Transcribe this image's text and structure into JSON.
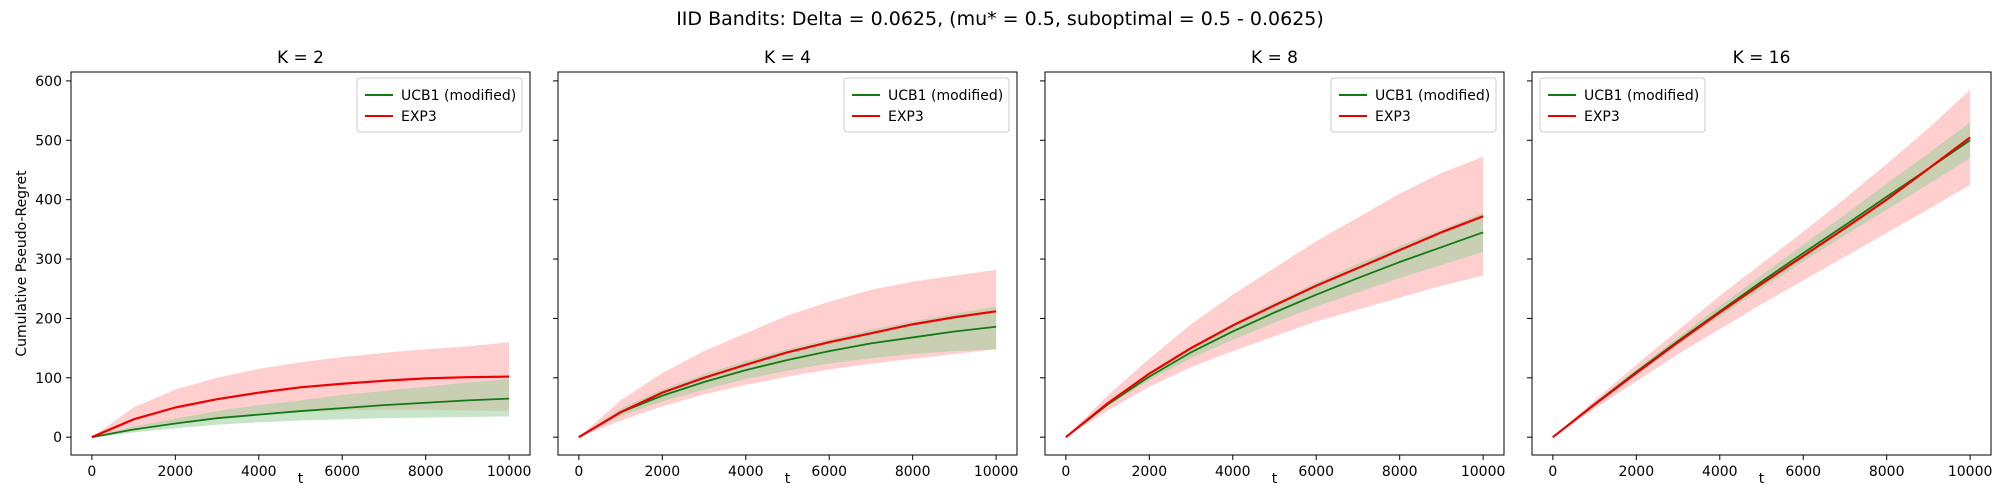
{
  "figure_title": "IID Bandits: Delta = 0.0625, (mu* = 0.5, suboptimal = 0.5 - 0.0625)",
  "colors": {
    "ucb_line": "#137a13",
    "ucb_band": "#9ccf9c",
    "exp3_line": "#ee0000",
    "exp3_band": "#ffb3b3"
  },
  "chart_data": [
    {
      "type": "line",
      "title": "K = 2",
      "xlabel": "t",
      "ylabel": "Cumulative Pseudo-Regret",
      "xlim": [
        -500,
        10500
      ],
      "ylim": [
        -30,
        615
      ],
      "xticks": [
        0,
        2000,
        4000,
        6000,
        8000,
        10000
      ],
      "yticks": [
        0,
        100,
        200,
        300,
        400,
        500,
        600
      ],
      "legend": "top-right",
      "x": [
        0,
        1000,
        2000,
        3000,
        4000,
        5000,
        6000,
        7000,
        8000,
        9000,
        10000
      ],
      "series": [
        {
          "name": "UCB1 (modified)",
          "mean": [
            0,
            13,
            23,
            32,
            38,
            44,
            49,
            54,
            58,
            62,
            65
          ],
          "upper": [
            0,
            18,
            31,
            44,
            54,
            62,
            71,
            78,
            85,
            92,
            98
          ],
          "lower": [
            0,
            8,
            15,
            21,
            25,
            28,
            30,
            32,
            33,
            34,
            35
          ]
        },
        {
          "name": "EXP3",
          "mean": [
            0,
            30,
            50,
            64,
            75,
            84,
            90,
            95,
            99,
            101,
            102
          ],
          "upper": [
            0,
            50,
            80,
            100,
            115,
            126,
            135,
            142,
            148,
            153,
            160
          ],
          "lower": [
            0,
            15,
            25,
            33,
            38,
            42,
            45,
            46,
            46,
            45,
            44
          ]
        }
      ]
    },
    {
      "type": "line",
      "title": "K = 4",
      "xlabel": "t",
      "ylabel": "",
      "xlim": [
        -500,
        10500
      ],
      "ylim": [
        -30,
        615
      ],
      "xticks": [
        0,
        2000,
        4000,
        6000,
        8000,
        10000
      ],
      "yticks": [
        0,
        100,
        200,
        300,
        400,
        500,
        600
      ],
      "legend": "top-right",
      "x": [
        0,
        1000,
        2000,
        3000,
        4000,
        5000,
        6000,
        7000,
        8000,
        9000,
        10000
      ],
      "series": [
        {
          "name": "UCB1 (modified)",
          "mean": [
            0,
            42,
            70,
            93,
            113,
            130,
            145,
            158,
            168,
            178,
            186
          ],
          "upper": [
            0,
            48,
            80,
            106,
            128,
            148,
            165,
            181,
            195,
            208,
            220
          ],
          "lower": [
            0,
            36,
            60,
            80,
            98,
            112,
            124,
            133,
            140,
            145,
            148
          ]
        },
        {
          "name": "EXP3",
          "mean": [
            0,
            42,
            75,
            100,
            122,
            143,
            160,
            175,
            190,
            202,
            212
          ],
          "upper": [
            0,
            62,
            108,
            145,
            175,
            205,
            228,
            248,
            262,
            272,
            282
          ],
          "lower": [
            0,
            28,
            52,
            72,
            88,
            102,
            114,
            124,
            132,
            140,
            148
          ]
        }
      ]
    },
    {
      "type": "line",
      "title": "K = 8",
      "xlabel": "t",
      "ylabel": "",
      "xlim": [
        -500,
        10500
      ],
      "ylim": [
        -30,
        615
      ],
      "xticks": [
        0,
        2000,
        4000,
        6000,
        8000,
        10000
      ],
      "yticks": [
        0,
        100,
        200,
        300,
        400,
        500,
        600
      ],
      "legend": "top-right",
      "x": [
        0,
        1000,
        2000,
        3000,
        4000,
        5000,
        6000,
        7000,
        8000,
        9000,
        10000
      ],
      "series": [
        {
          "name": "UCB1 (modified)",
          "mean": [
            0,
            55,
            102,
            143,
            178,
            210,
            240,
            268,
            295,
            320,
            345
          ],
          "upper": [
            0,
            58,
            108,
            153,
            192,
            227,
            260,
            292,
            322,
            350,
            378
          ],
          "lower": [
            0,
            52,
            96,
            133,
            164,
            193,
            220,
            244,
            268,
            290,
            312
          ]
        },
        {
          "name": "EXP3",
          "mean": [
            0,
            57,
            107,
            150,
            188,
            222,
            255,
            285,
            315,
            345,
            372
          ],
          "upper": [
            0,
            70,
            132,
            190,
            240,
            285,
            330,
            370,
            410,
            445,
            472
          ],
          "lower": [
            0,
            45,
            85,
            118,
            145,
            170,
            195,
            215,
            235,
            255,
            272
          ]
        }
      ]
    },
    {
      "type": "line",
      "title": "K = 16",
      "xlabel": "t",
      "ylabel": "",
      "xlim": [
        -500,
        10500
      ],
      "ylim": [
        -30,
        615
      ],
      "xticks": [
        0,
        2000,
        4000,
        6000,
        8000,
        10000
      ],
      "yticks": [
        0,
        100,
        200,
        300,
        400,
        500,
        600
      ],
      "legend": "top-left",
      "x": [
        0,
        1000,
        2000,
        3000,
        4000,
        5000,
        6000,
        7000,
        8000,
        9000,
        10000
      ],
      "series": [
        {
          "name": "UCB1 (modified)",
          "mean": [
            0,
            56,
            110,
            162,
            212,
            262,
            310,
            357,
            405,
            452,
            500
          ],
          "upper": [
            0,
            58,
            114,
            168,
            221,
            273,
            324,
            375,
            427,
            478,
            530
          ],
          "lower": [
            0,
            54,
            106,
            156,
            203,
            250,
            296,
            340,
            383,
            426,
            470
          ]
        },
        {
          "name": "EXP3",
          "mean": [
            0,
            55,
            108,
            160,
            210,
            258,
            305,
            352,
            400,
            452,
            505
          ],
          "upper": [
            0,
            62,
            122,
            180,
            238,
            292,
            346,
            402,
            460,
            520,
            585
          ],
          "lower": [
            0,
            48,
            94,
            140,
            182,
            224,
            264,
            304,
            344,
            384,
            425
          ]
        }
      ]
    }
  ]
}
